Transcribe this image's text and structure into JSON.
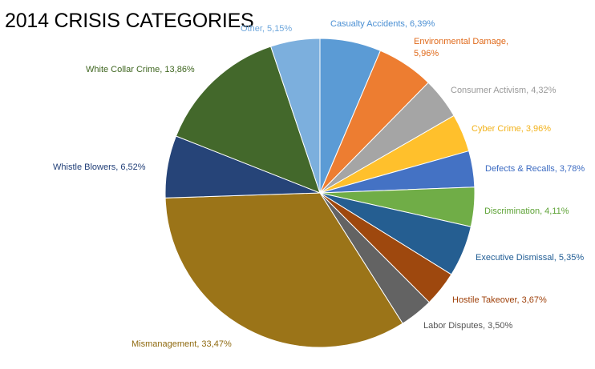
{
  "chart_data": {
    "type": "pie",
    "title": "2014 CRISIS CATEGORIES",
    "slices": [
      {
        "label": "Casualty Accidents, 6,39%",
        "value": 6.39,
        "color": "#5b9bd5",
        "text_color": "#4a8fd3"
      },
      {
        "label": "Environmental Damage, 5,96%",
        "label_lines": [
          "Environmental Damage,",
          "5,96%"
        ],
        "value": 5.96,
        "color": "#ed7d31",
        "text_color": "#e06a1b"
      },
      {
        "label": "Consumer Activism, 4,32%",
        "value": 4.32,
        "color": "#a5a5a5",
        "text_color": "#9a9a9a"
      },
      {
        "label": "Cyber Crime, 3,96%",
        "value": 3.96,
        "color": "#ffc02c",
        "text_color": "#f2b21a"
      },
      {
        "label": "Defects & Recalls, 3,78%",
        "value": 3.78,
        "color": "#4472c4",
        "text_color": "#3c6bc2"
      },
      {
        "label": "Discrimination, 4,11%",
        "value": 4.11,
        "color": "#70ad47",
        "text_color": "#5ea336"
      },
      {
        "label": "Executive Dismissal, 5,35%",
        "value": 5.35,
        "color": "#255e91",
        "text_color": "#1f5c94"
      },
      {
        "label": "Hostile Takeover, 3,67%",
        "value": 3.67,
        "color": "#9e480e",
        "text_color": "#9e3f08"
      },
      {
        "label": "Labor Disputes, 3,50%",
        "value": 3.5,
        "color": "#636363",
        "text_color": "#555555"
      },
      {
        "label": "Mismanagement, 33,47%",
        "value": 33.47,
        "color": "#9b7418",
        "text_color": "#8f6a10"
      },
      {
        "label": "Whistle Blowers, 6,52%",
        "value": 6.52,
        "color": "#264478",
        "text_color": "#213f78"
      },
      {
        "label": "White Collar Crime, 13,86%",
        "value": 13.86,
        "color": "#43682b",
        "text_color": "#3f6620"
      },
      {
        "label": "Other, 5,15%",
        "value": 5.15,
        "color": "#7cafdd",
        "text_color": "#6ea7dc"
      }
    ],
    "start_angle_deg": 0,
    "direction": "clockwise",
    "legend": "none"
  }
}
